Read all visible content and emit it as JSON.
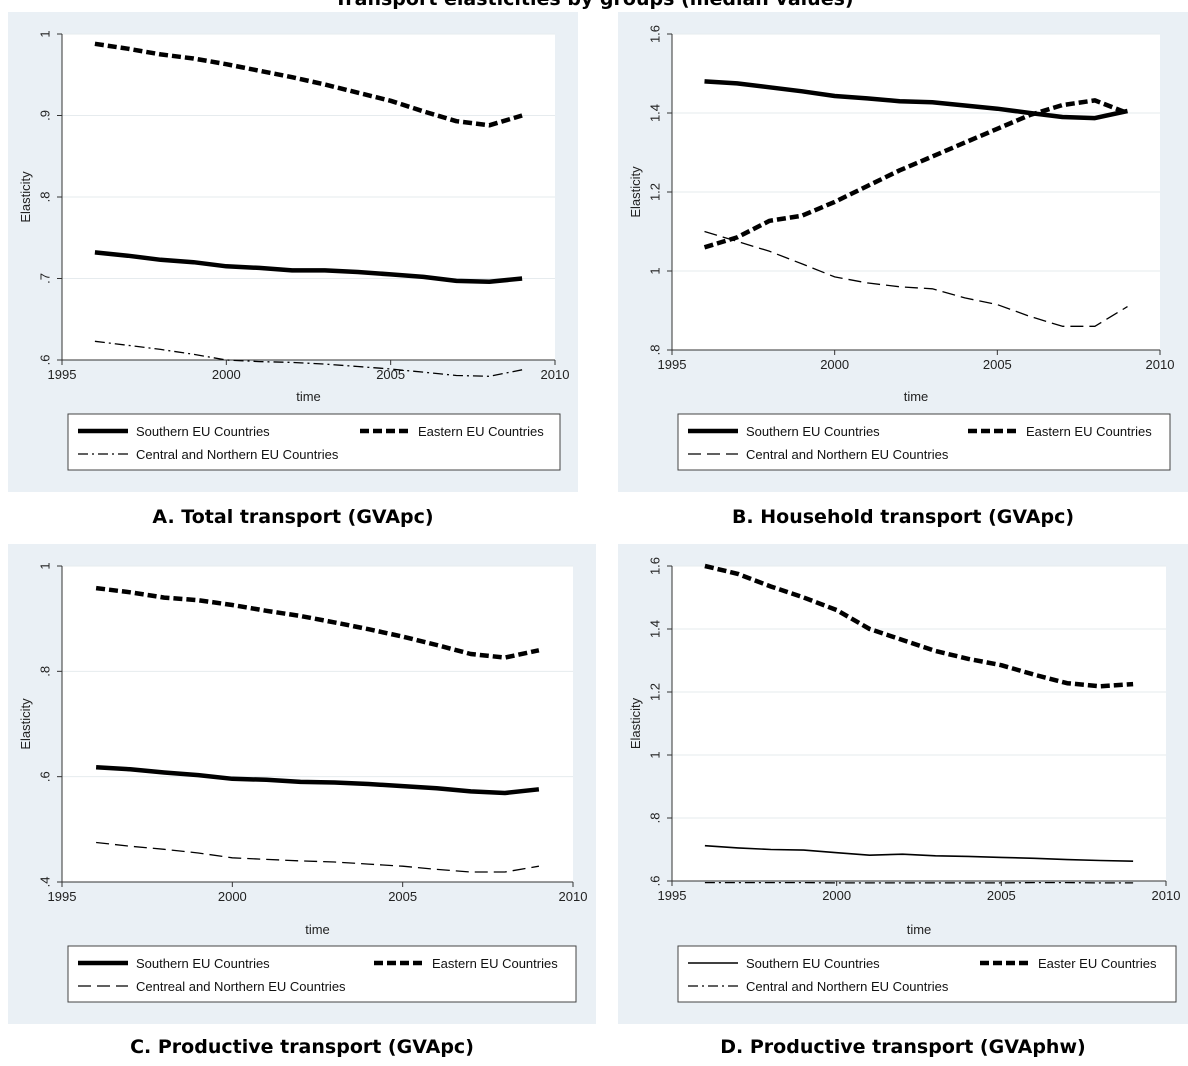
{
  "page": {
    "title": "Transport elasticities by groups (median values)"
  },
  "chart_data": [
    {
      "type": "line",
      "caption": "A. Total transport (GVApc)",
      "xlabel": "time",
      "ylabel": "Elasticity",
      "xlim": [
        1995,
        2010
      ],
      "ylim": [
        0.6,
        1.0
      ],
      "xticks": [
        1995,
        2000,
        2005,
        2010
      ],
      "xtick_labels": [
        "1995",
        "2000",
        "2005",
        "2010"
      ],
      "yticks": [
        0.6,
        0.7,
        0.8,
        0.9,
        1.0
      ],
      "ytick_labels": [
        ".6",
        ".7",
        ".8",
        ".9",
        "1"
      ],
      "grid": true,
      "x": [
        1996,
        1997,
        1998,
        1999,
        2000,
        2001,
        2002,
        2003,
        2004,
        2005,
        2006,
        2007,
        2008,
        2009
      ],
      "legend_layout": [
        [
          0,
          1
        ],
        [
          2
        ]
      ],
      "series": [
        {
          "name": "Southern EU Countries",
          "style": "thick-solid",
          "values": [
            0.732,
            0.728,
            0.723,
            0.72,
            0.715,
            0.713,
            0.71,
            0.71,
            0.708,
            0.705,
            0.702,
            0.697,
            0.696,
            0.7
          ]
        },
        {
          "name": "Eastern EU Countries",
          "style": "thick-dash",
          "values": [
            0.988,
            0.982,
            0.975,
            0.97,
            0.963,
            0.955,
            0.947,
            0.938,
            0.928,
            0.918,
            0.905,
            0.893,
            0.888,
            0.9
          ]
        },
        {
          "name": "Central and Northern EU Countries",
          "style": "dash-dot",
          "values": [
            0.623,
            0.618,
            0.613,
            0.607,
            0.6,
            0.598,
            0.597,
            0.595,
            0.592,
            0.589,
            0.585,
            0.581,
            0.58,
            0.588
          ]
        }
      ]
    },
    {
      "type": "line",
      "caption": "B. Household transport (GVApc)",
      "xlabel": "time",
      "ylabel": "Elasticity",
      "xlim": [
        1995,
        2010
      ],
      "ylim": [
        0.8,
        1.6
      ],
      "xticks": [
        1995,
        2000,
        2005,
        2010
      ],
      "xtick_labels": [
        "1995",
        "2000",
        "2005",
        "2010"
      ],
      "yticks": [
        0.8,
        1.0,
        1.2,
        1.4,
        1.6
      ],
      "ytick_labels": [
        ".8",
        "1",
        "1.2",
        "1.4",
        "1.6"
      ],
      "grid": true,
      "x": [
        1996,
        1997,
        1998,
        1999,
        2000,
        2001,
        2002,
        2003,
        2004,
        2005,
        2006,
        2007,
        2008,
        2009
      ],
      "legend_layout": [
        [
          0,
          1
        ],
        [
          2
        ]
      ],
      "series": [
        {
          "name": "Southern EU Countries",
          "style": "thick-solid",
          "values": [
            1.48,
            1.475,
            1.465,
            1.455,
            1.443,
            1.437,
            1.43,
            1.427,
            1.419,
            1.411,
            1.4,
            1.39,
            1.387,
            1.405
          ]
        },
        {
          "name": "Eastern EU Countries",
          "style": "thick-dash",
          "values": [
            1.06,
            1.085,
            1.127,
            1.14,
            1.175,
            1.215,
            1.255,
            1.29,
            1.325,
            1.36,
            1.395,
            1.42,
            1.432,
            1.4
          ]
        },
        {
          "name": "Central and Northern EU Countries",
          "style": "long-dash",
          "values": [
            1.1,
            1.075,
            1.05,
            1.018,
            0.985,
            0.97,
            0.96,
            0.955,
            0.932,
            0.915,
            0.885,
            0.86,
            0.86,
            0.91
          ]
        }
      ]
    },
    {
      "type": "line",
      "caption": "C. Productive transport (GVApc)",
      "xlabel": "time",
      "ylabel": "Elasticity",
      "xlim": [
        1995,
        2010
      ],
      "ylim": [
        0.4,
        1.0
      ],
      "xticks": [
        1995,
        2000,
        2005,
        2010
      ],
      "xtick_labels": [
        "1995",
        "2000",
        "2005",
        "2010"
      ],
      "yticks": [
        0.4,
        0.6,
        0.8,
        1.0
      ],
      "ytick_labels": [
        ".4",
        ".6",
        ".8",
        "1"
      ],
      "grid": true,
      "x": [
        1996,
        1997,
        1998,
        1999,
        2000,
        2001,
        2002,
        2003,
        2004,
        2005,
        2006,
        2007,
        2008,
        2009
      ],
      "legend_layout": [
        [
          0,
          1
        ],
        [
          2
        ]
      ],
      "series": [
        {
          "name": "Southern EU Countries",
          "style": "thick-solid",
          "values": [
            0.618,
            0.614,
            0.608,
            0.603,
            0.596,
            0.594,
            0.59,
            0.589,
            0.586,
            0.582,
            0.578,
            0.572,
            0.569,
            0.576
          ]
        },
        {
          "name": "Eastern EU Countries",
          "style": "thick-dash",
          "values": [
            0.958,
            0.95,
            0.94,
            0.935,
            0.926,
            0.915,
            0.905,
            0.893,
            0.88,
            0.866,
            0.85,
            0.833,
            0.826,
            0.84
          ]
        },
        {
          "name": "Centreal and Northern EU Countries",
          "style": "long-dash",
          "values": [
            0.475,
            0.468,
            0.462,
            0.455,
            0.446,
            0.443,
            0.44,
            0.438,
            0.434,
            0.43,
            0.424,
            0.419,
            0.419,
            0.43
          ]
        }
      ]
    },
    {
      "type": "line",
      "caption": "D. Productive transport (GVAphw)",
      "xlabel": "time",
      "ylabel": "Elasticity",
      "xlim": [
        1995,
        2010
      ],
      "ylim": [
        0.6,
        1.6
      ],
      "xticks": [
        1995,
        2000,
        2005,
        2010
      ],
      "xtick_labels": [
        "1995",
        "2000",
        "2005",
        "2010"
      ],
      "yticks": [
        0.6,
        0.8,
        1.0,
        1.2,
        1.4,
        1.6
      ],
      "ytick_labels": [
        ".6",
        ".8",
        "1",
        "1.2",
        "1.4",
        "1.6"
      ],
      "grid": true,
      "x": [
        1996,
        1997,
        1998,
        1999,
        2000,
        2001,
        2002,
        2003,
        2004,
        2005,
        2006,
        2007,
        2008,
        2009
      ],
      "legend_layout": [
        [
          0,
          1
        ],
        [
          2
        ]
      ],
      "series": [
        {
          "name": "Southern EU Countries",
          "style": "thin-solid",
          "values": [
            0.712,
            0.705,
            0.7,
            0.698,
            0.69,
            0.682,
            0.685,
            0.68,
            0.678,
            0.675,
            0.672,
            0.668,
            0.665,
            0.663
          ]
        },
        {
          "name": "Easter EU Countries",
          "style": "thick-dash",
          "values": [
            1.6,
            1.575,
            1.535,
            1.5,
            1.46,
            1.4,
            1.365,
            1.33,
            1.305,
            1.285,
            1.255,
            1.228,
            1.218,
            1.225
          ]
        },
        {
          "name": "Central and Northern EU Countries",
          "style": "dash-dot",
          "values": [
            0.595,
            0.595,
            0.595,
            0.595,
            0.594,
            0.594,
            0.594,
            0.594,
            0.594,
            0.594,
            0.595,
            0.595,
            0.594,
            0.594
          ]
        }
      ]
    }
  ]
}
